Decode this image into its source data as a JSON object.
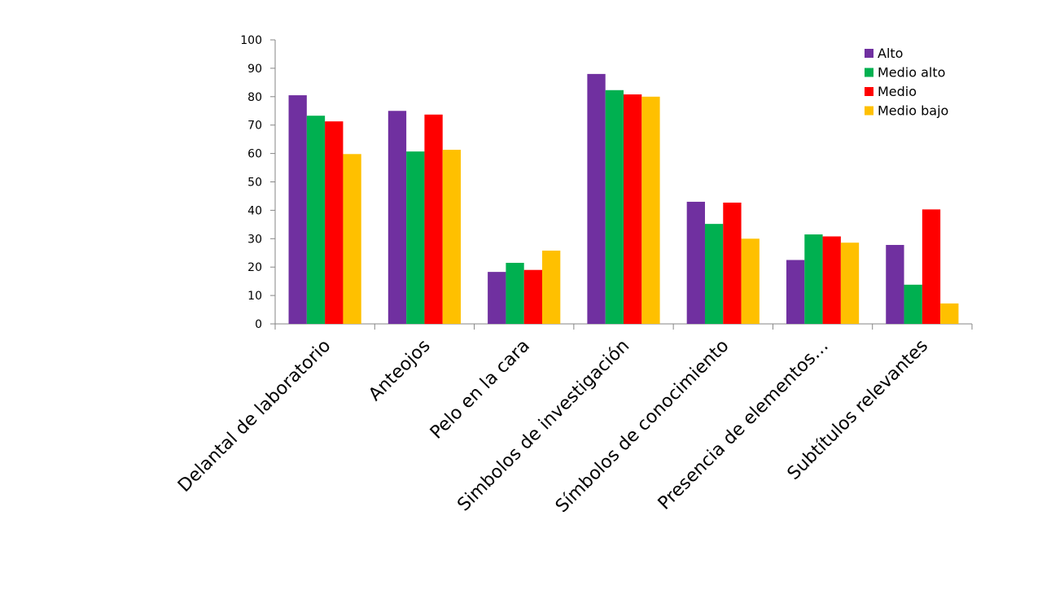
{
  "chart_data": {
    "type": "bar",
    "categories": [
      "Delantal de laboratorio",
      "Anteojos",
      "Pelo en la cara",
      "Simbolos de investigación",
      "Símbolos de conocimiento",
      "Presencia de elementos…",
      "Subtítulos relevantes"
    ],
    "series": [
      {
        "name": "Alto",
        "color": "#7030A0",
        "values": [
          80.5,
          75.0,
          18.3,
          88.0,
          43.0,
          22.5,
          27.8
        ]
      },
      {
        "name": "Medio alto",
        "color": "#00B050",
        "values": [
          73.3,
          60.7,
          21.5,
          82.3,
          35.2,
          31.5,
          13.8
        ]
      },
      {
        "name": "Medio",
        "color": "#FF0000",
        "values": [
          71.3,
          73.7,
          19.0,
          80.8,
          42.7,
          30.8,
          40.3
        ]
      },
      {
        "name": "Medio bajo",
        "color": "#FFC000",
        "values": [
          59.8,
          61.3,
          25.8,
          80.0,
          30.0,
          28.6,
          7.2
        ]
      }
    ],
    "yticks": [
      "0",
      "10",
      "20",
      "30",
      "40",
      "50",
      "60",
      "70",
      "80",
      "90",
      "100"
    ],
    "ylim": [
      0,
      100
    ],
    "title": "",
    "xlabel": "",
    "ylabel": "",
    "grid": false,
    "legend_position": "top-right"
  }
}
